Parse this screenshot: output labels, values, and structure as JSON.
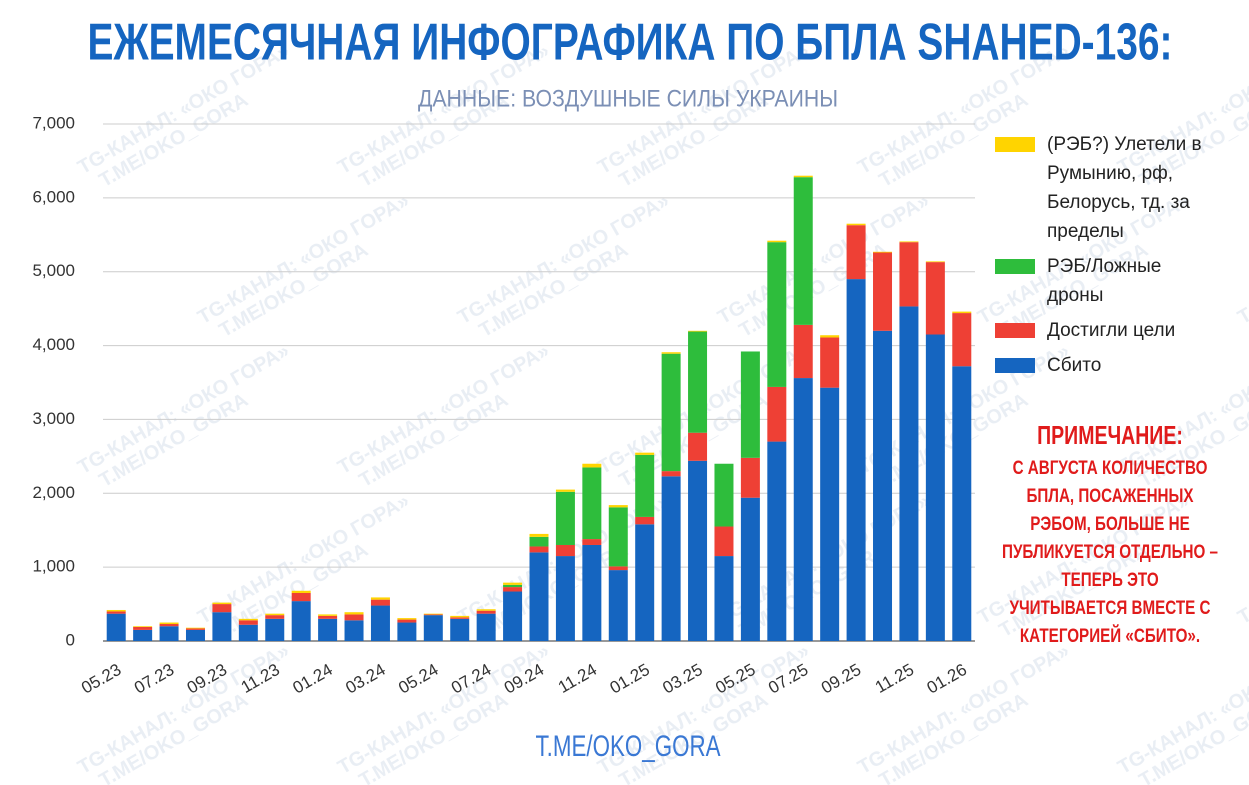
{
  "chart_data": {
    "type": "stacked_bar",
    "title": "ЕЖЕМЕСЯЧНАЯ ИНФОГРАФИКА ПО БПЛА SHAHED-136:",
    "subtitle": "ДАННЫЕ: ВОЗДУШНЫЕ СИЛЫ УКРАИНЫ",
    "footer": "T.ME/OKO_GORA",
    "watermark": [
      "TG-КАНАЛ: «ОКО ГОРА»",
      "T.ME/OKO_GORA"
    ],
    "note_title": "ПРИМЕЧАНИЕ:",
    "note_text": "С АВГУСТА КОЛИЧЕСТВО БПЛА, ПОСАЖЕННЫХ РЭБОМ, БОЛЬШЕ НЕ ПУБЛИКУЕТСЯ ОТДЕЛЬНО – ТЕПЕРЬ ЭТО УЧИТЫВАЕТСЯ ВМЕСТЕ С КАТЕГОРИЕЙ «СБИТО».",
    "categories": [
      "05.23",
      null,
      "07.23",
      null,
      "09.23",
      null,
      "11.23",
      null,
      "01.24",
      null,
      "03.24",
      null,
      "05.24",
      null,
      "07.24",
      null,
      "09.24",
      null,
      "11.24",
      null,
      "01.25",
      null,
      "03.25",
      null,
      "05.25",
      null,
      "07.25",
      null,
      "09.25",
      null,
      "11.25",
      null,
      "01.26"
    ],
    "series": [
      {
        "name": "Сбито",
        "color": "#1565c0",
        "values": [
          370,
          150,
          200,
          150,
          390,
          220,
          300,
          540,
          300,
          280,
          480,
          250,
          350,
          300,
          370,
          670,
          1200,
          1150,
          1300,
          960,
          1580,
          2230,
          2440,
          1150,
          1940,
          2700,
          3560,
          3430,
          4900,
          4200,
          4530,
          4150,
          3720
        ]
      },
      {
        "name": "Достигли цели",
        "color": "#ee4035",
        "values": [
          30,
          40,
          30,
          20,
          110,
          60,
          50,
          110,
          40,
          80,
          80,
          40,
          10,
          20,
          40,
          60,
          80,
          150,
          80,
          50,
          100,
          70,
          380,
          400,
          540,
          740,
          720,
          680,
          730,
          1060,
          870,
          980,
          720
        ]
      },
      {
        "name": "РЭБ/Ложные дроны",
        "color": "#2ebd3c",
        "values": [
          0,
          0,
          0,
          0,
          0,
          0,
          0,
          0,
          0,
          0,
          0,
          0,
          0,
          0,
          0,
          30,
          130,
          720,
          970,
          800,
          840,
          1590,
          1370,
          850,
          1440,
          1960,
          2000,
          0,
          0,
          0,
          0,
          0,
          0
        ]
      },
      {
        "name": "(РЭБ?) Улетели в Румынию, рф, Белорусь, тд. за пределы",
        "color": "#ffd400",
        "values": [
          20,
          10,
          20,
          10,
          20,
          20,
          20,
          30,
          20,
          30,
          30,
          20,
          10,
          20,
          20,
          30,
          40,
          30,
          50,
          30,
          30,
          20,
          10,
          0,
          0,
          20,
          20,
          30,
          20,
          10,
          10,
          10,
          20
        ]
      }
    ],
    "ylim": [
      0,
      7000
    ],
    "yticks": [
      0,
      {
        "value": 1000,
        "label": "1,000"
      },
      {
        "value": 2000,
        "label": "2,000"
      },
      {
        "value": 3000,
        "label": "3,000"
      },
      {
        "value": 4000,
        "label": "4,000"
      },
      {
        "value": 5000,
        "label": "5,000"
      },
      {
        "value": 6000,
        "label": "6,000"
      },
      {
        "value": 7000,
        "label": "7,000"
      }
    ],
    "grid": true
  }
}
